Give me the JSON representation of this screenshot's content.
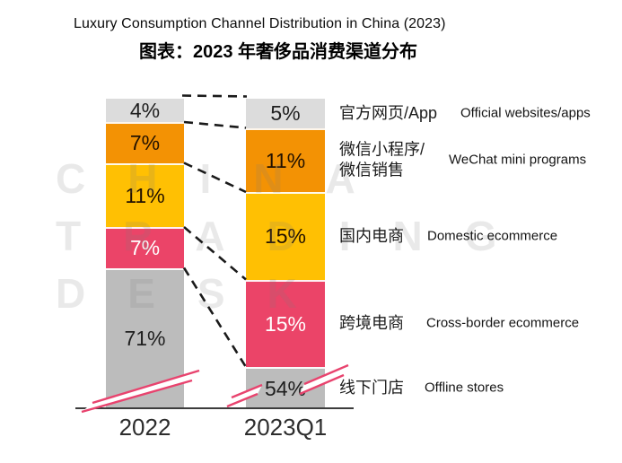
{
  "title_en": "Luxury Consumption Channel Distribution in China (2023)",
  "title_zh": "图表：2023 年奢侈品消费渠道分布",
  "watermark_rows": [
    "CHINA",
    "TRADING",
    "DESK"
  ],
  "chart_data": {
    "type": "bar",
    "stacked": true,
    "orientation": "vertical",
    "title": "Luxury Consumption Channel Distribution in China (2023)",
    "subtitle_zh": "图表：2023 年奢侈品消费渠道分布",
    "categories": [
      "2022",
      "2023Q1"
    ],
    "value_suffix": "%",
    "series": [
      {
        "label_zh": "官方网页/App",
        "label_en": "Official websites/apps",
        "color": "#dcdcdc",
        "value_color": "#1f1f1f",
        "values": [
          4,
          5
        ]
      },
      {
        "label_zh": "微信小程序/\n微信销售",
        "label_en": "WeChat mini programs",
        "color": "#f39204",
        "value_color": "#221100",
        "values": [
          7,
          11
        ]
      },
      {
        "label_zh": "国内电商",
        "label_en": "Domestic ecommerce",
        "color": "#ffc003",
        "value_color": "#221100",
        "values": [
          11,
          15
        ]
      },
      {
        "label_zh": "跨境电商",
        "label_en": "Cross-border ecommerce",
        "color": "#eb4468",
        "value_color": "#ffffff",
        "values": [
          7,
          15
        ]
      },
      {
        "label_zh": "线下门店",
        "label_en": "Offline stores",
        "color": "#bcbcbc",
        "value_color": "#1f1f1f",
        "values": [
          71,
          54
        ]
      }
    ],
    "axis_break_on_last_segment": true,
    "break_mark_color": "#e8436e",
    "connector_line_style": "dashed",
    "legend_position": "right",
    "grid": false
  }
}
